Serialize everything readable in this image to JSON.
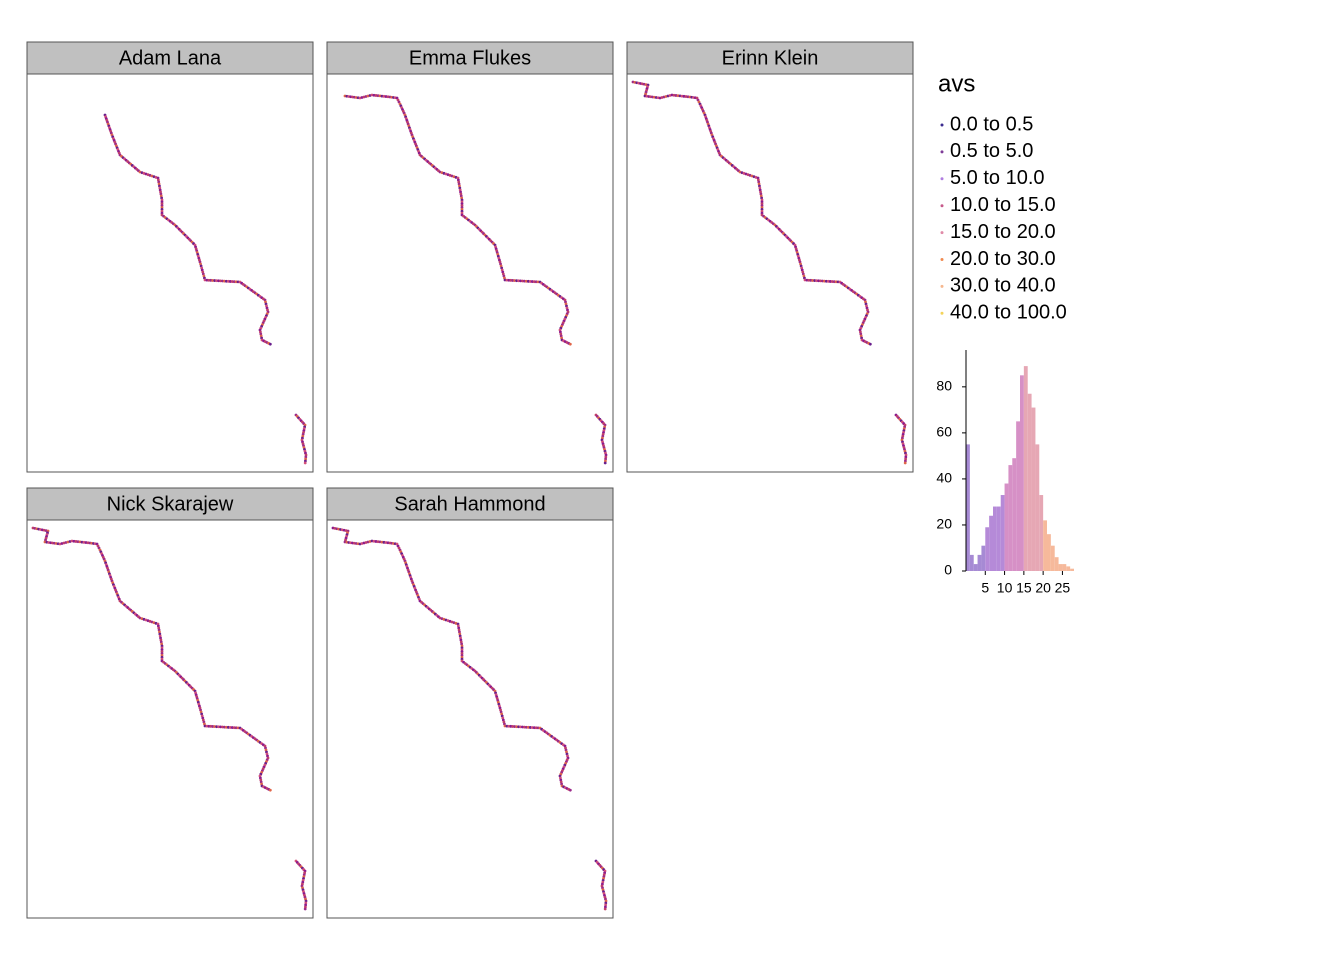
{
  "panels": [
    {
      "title": "Adam Lana"
    },
    {
      "title": "Emma Flukes"
    },
    {
      "title": "Erinn Klein"
    },
    {
      "title": "Nick Skarajew"
    },
    {
      "title": "Sarah Hammond"
    }
  ],
  "legend": {
    "title": "avs",
    "items": [
      {
        "label": "0.0 to 0.5",
        "color": "#3b2b8f"
      },
      {
        "label": "0.5 to 5.0",
        "color": "#7e3b98"
      },
      {
        "label": "5.0 to 10.0",
        "color": "#b07ee0"
      },
      {
        "label": "10.0 to 15.0",
        "color": "#c75a8b"
      },
      {
        "label": "15.0 to 20.0",
        "color": "#e08aa8"
      },
      {
        "label": "20.0 to 30.0",
        "color": "#f08a50"
      },
      {
        "label": "30.0 to 40.0",
        "color": "#f6b88f"
      },
      {
        "label": "40.0 to 100.0",
        "color": "#f3d35a"
      }
    ]
  },
  "chart_data": {
    "type": "histogram",
    "bins": [
      0,
      1,
      2,
      3,
      4,
      5,
      6,
      7,
      8,
      9,
      10,
      11,
      12,
      13,
      14,
      15,
      16,
      17,
      18,
      19,
      20,
      21,
      22,
      23,
      24,
      25,
      26,
      27,
      28
    ],
    "values": [
      55,
      7,
      3,
      7,
      11,
      19,
      24,
      28,
      28,
      33,
      38,
      46,
      49,
      65,
      85,
      89,
      77,
      71,
      55,
      33,
      22,
      16,
      11,
      6,
      3,
      3,
      2,
      1
    ],
    "colors": [
      "#a68ad4",
      "#a68ad4",
      "#a68ad4",
      "#a68ad4",
      "#a68ad4",
      "#b58ad8",
      "#b58ad8",
      "#b58ad8",
      "#b58ad8",
      "#b58ad8",
      "#d690c6",
      "#d690c6",
      "#d690c6",
      "#d690c6",
      "#d690c6",
      "#e6a7b4",
      "#e6a7b4",
      "#e6a7b4",
      "#e6a7b4",
      "#e6a7b4",
      "#f6b99b",
      "#f6b99b",
      "#f6b99b",
      "#f6b99b",
      "#f6b99b",
      "#f6b99b",
      "#f6b99b",
      "#f6b99b"
    ],
    "xlim": [
      0,
      28
    ],
    "ylim": [
      0,
      96
    ],
    "xticks": [
      5,
      10,
      15,
      20,
      25
    ],
    "yticks": [
      0,
      20,
      40,
      60,
      80
    ]
  }
}
